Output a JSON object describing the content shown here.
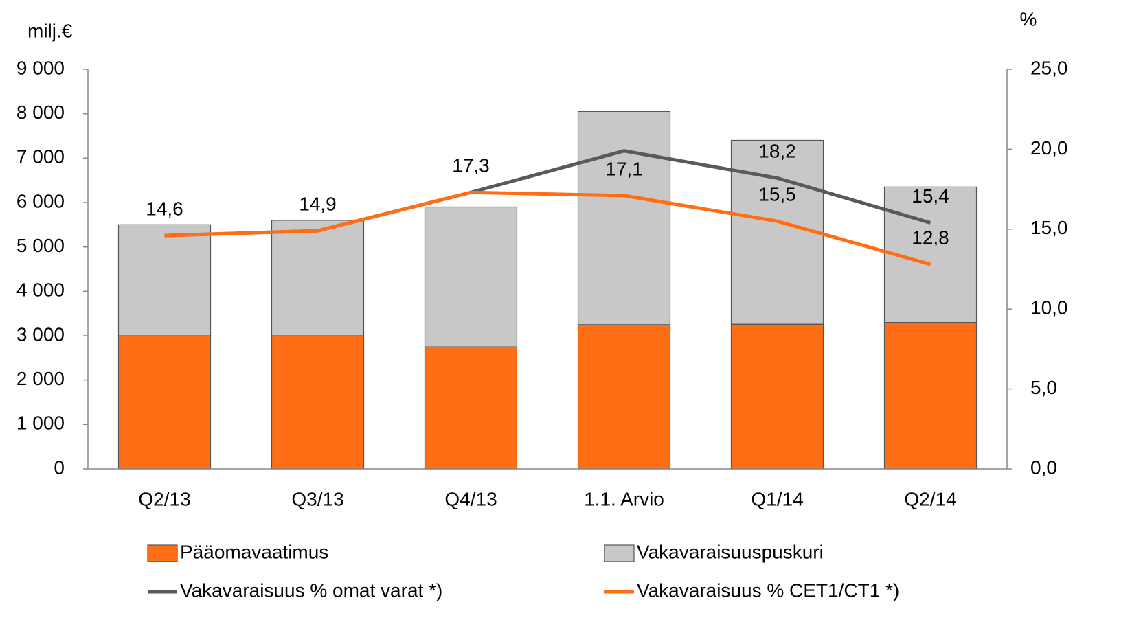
{
  "chart_data": {
    "type": "bar_line",
    "y_label": "milj.€",
    "y2_label": "%",
    "categories": [
      "Q2/13",
      "Q3/13",
      "Q4/13",
      "1.1. Arvio",
      "Q1/14",
      "Q2/14"
    ],
    "series": [
      {
        "name": "Pääomavaatimus",
        "type": "bar",
        "color": "#ff6e14",
        "values": [
          3000,
          3000,
          2750,
          3250,
          3260,
          3300
        ]
      },
      {
        "name": "Vakavaraisuuspuskuri",
        "type": "bar",
        "color": "#c8c8c8",
        "values": [
          2500,
          2600,
          3150,
          4800,
          4140,
          3050
        ]
      },
      {
        "name": "Vakavaraisuus % omat varat *)",
        "type": "line",
        "axis": "y2",
        "color": "#5a5a5a",
        "values": [
          14.6,
          14.9,
          17.3,
          19.9,
          18.2,
          15.4
        ],
        "value_labels": [
          null,
          null,
          "17,3",
          null,
          "18,2",
          "15,4"
        ]
      },
      {
        "name": "Vakavaraisuus % CET1/CT1 *)",
        "type": "line",
        "axis": "y2",
        "color": "#ff6e14",
        "values": [
          14.6,
          14.9,
          17.3,
          17.1,
          15.5,
          12.8
        ],
        "value_labels": [
          "14,6",
          "14,9",
          null,
          "17,1",
          "15,5",
          "12,8"
        ]
      }
    ],
    "ylim": [
      0,
      9000
    ],
    "yticks": [
      0,
      {
        "value": 1000,
        "label": "1 000"
      },
      {
        "value": 2000,
        "label": "2 000"
      },
      {
        "value": 3000,
        "label": "3 000"
      },
      {
        "value": 4000,
        "label": "4 000"
      },
      {
        "value": 5000,
        "label": "5 000"
      },
      {
        "value": 6000,
        "label": "6 000"
      },
      {
        "value": 7000,
        "label": "7 000"
      },
      {
        "value": 8000,
        "label": "8 000"
      },
      {
        "value": 9000,
        "label": "9 000"
      }
    ],
    "y2lim": [
      0,
      25
    ],
    "y2ticks": [
      {
        "value": 0,
        "label": "0,0"
      },
      {
        "value": 5,
        "label": "5,0"
      },
      {
        "value": 10,
        "label": "10,0"
      },
      {
        "value": 15,
        "label": "15,0"
      },
      {
        "value": 20,
        "label": "20,0"
      },
      {
        "value": 25,
        "label": "25,0"
      }
    ]
  }
}
